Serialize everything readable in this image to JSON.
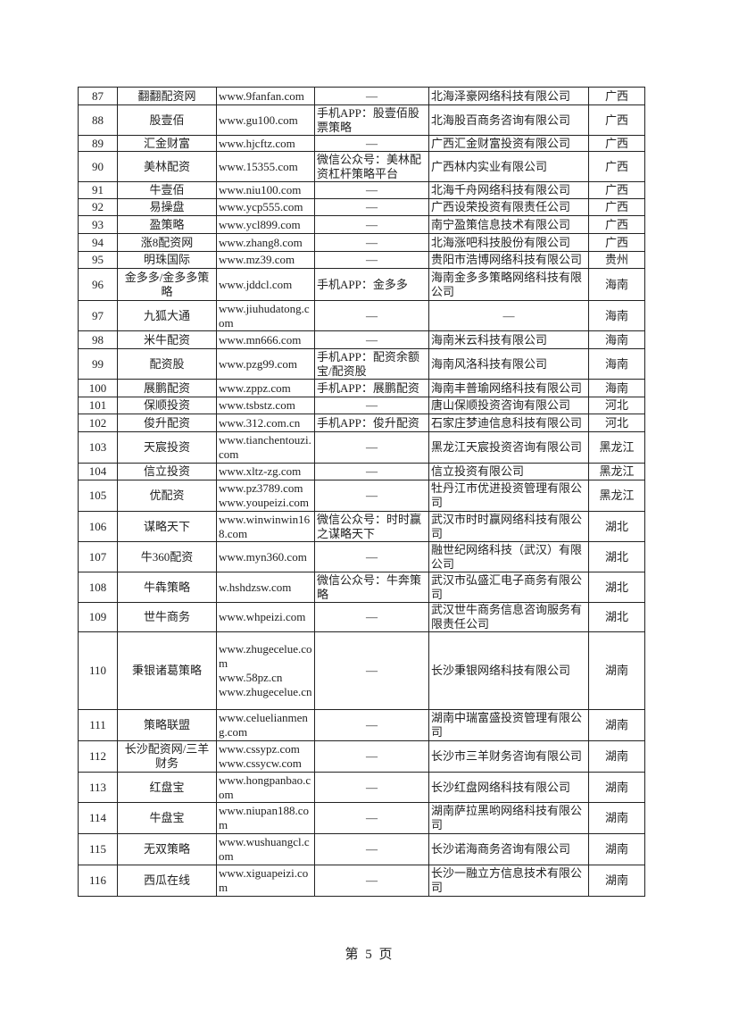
{
  "table": {
    "rows": [
      [
        "87",
        "翻翻配资网",
        "www.9fanfan.com",
        "—",
        "北海泽豪网络科技有限公司",
        "广西"
      ],
      [
        "88",
        "股壹佰",
        "www.gu100.com",
        "手机APP：股壹佰股票策略",
        "北海股百商务咨询有限公司",
        "广西"
      ],
      [
        "89",
        "汇金财富",
        "www.hjcftz.com",
        "—",
        "广西汇金财富投资有限公司",
        "广西"
      ],
      [
        "90",
        "美林配资",
        "www.15355.com",
        "微信公众号：美林配资杠杆策略平台",
        "广西林内实业有限公司",
        "广西"
      ],
      [
        "91",
        "牛壹佰",
        "www.niu100.com",
        "—",
        "北海千舟网络科技有限公司",
        "广西"
      ],
      [
        "92",
        "易操盘",
        "www.ycp555.com",
        "—",
        "广西设荣投资有限责任公司",
        "广西"
      ],
      [
        "93",
        "盈策略",
        "www.ycl899.com",
        "—",
        "南宁盈策信息技术有限公司",
        "广西"
      ],
      [
        "94",
        "涨8配资网",
        "www.zhang8.com",
        "—",
        "北海涨吧科技股份有限公司",
        "广西"
      ],
      [
        "95",
        "明珠国际",
        "www.mz39.com",
        "—",
        "贵阳市浩博网络科技有限公司",
        "贵州"
      ],
      [
        "96",
        "金多多/金多多策略",
        "www.jddcl.com",
        "手机APP：金多多",
        "海南金多多策略网络科技有限公司",
        "海南"
      ],
      [
        "97",
        "九狐大通",
        "www.jiuhudatong.com",
        "—",
        "—",
        "海南"
      ],
      [
        "98",
        "米牛配资",
        "www.mn666.com",
        "—",
        "海南米云科技有限公司",
        "海南"
      ],
      [
        "99",
        "配资股",
        "www.pzg99.com",
        "手机APP：配资余额宝/配资股",
        "海南风洛科技有限公司",
        "海南"
      ],
      [
        "100",
        "展鹏配资",
        "www.zppz.com",
        "手机APP：展鹏配资",
        "海南丰普瑜网络科技有限公司",
        "海南"
      ],
      [
        "101",
        "保顺投资",
        "www.tsbstz.com",
        "—",
        "唐山保顺投资咨询有限公司",
        "河北"
      ],
      [
        "102",
        "俊升配资",
        "www.312.com.cn",
        "手机APP：俊升配资",
        "石家庄梦迪信息科技有限公司",
        "河北"
      ],
      [
        "103",
        "天宸投资",
        "www.tianchentouzi.com",
        "—",
        "黑龙江天宸投资咨询有限公司",
        "黑龙江"
      ],
      [
        "104",
        "信立投资",
        "www.xltz-zg.com",
        "—",
        "信立投资有限公司",
        "黑龙江"
      ],
      [
        "105",
        "优配资",
        "www.pz3789.com www.youpeizi.com",
        "—",
        "牡丹江市优进投资管理有限公司",
        "黑龙江"
      ],
      [
        "106",
        "谋略天下",
        "www.winwinwin168.com",
        "微信公众号：时时赢之谋略天下",
        "武汉市时时赢网络科技有限公司",
        "湖北"
      ],
      [
        "107",
        "牛360配资",
        "www.myn360.com",
        "—",
        "融世纪网络科技（武汉）有限公司",
        "湖北"
      ],
      [
        "108",
        "牛犇策略",
        "w.hshdzsw.com",
        "微信公众号：牛奔策略",
        "武汉市弘盛汇电子商务有限公司",
        "湖北"
      ],
      [
        "109",
        "世牛商务",
        "www.whpeizi.com",
        "—",
        "武汉世牛商务信息咨询服务有限责任公司",
        "湖北"
      ],
      [
        "110",
        "秉银诸葛策略",
        "www.zhugecelue.com www.58pz.cn www.zhugecelue.cn",
        "—",
        "长沙秉银网络科技有限公司",
        "湖南"
      ],
      [
        "111",
        "策略联盟",
        "www.celuelianmeng.com",
        "—",
        "湖南中瑞富盛投资管理有限公司",
        "湖南"
      ],
      [
        "112",
        "长沙配资网/三羊财务",
        "www.cssypz.com www.cssycw.com",
        "—",
        "长沙市三羊财务咨询有限公司",
        "湖南"
      ],
      [
        "113",
        "红盘宝",
        "www.hongpanbao.com",
        "—",
        "长沙红盘网络科技有限公司",
        "湖南"
      ],
      [
        "114",
        "牛盘宝",
        "www.niupan188.com",
        "—",
        "湖南萨拉黑哟网络科技有限公司",
        "湖南"
      ],
      [
        "115",
        "无双策略",
        "www.wushuangcl.com",
        "—",
        "长沙诺海商务咨询有限公司",
        "湖南"
      ],
      [
        "116",
        "西瓜在线",
        "www.xiguapeizi.com",
        "—",
        "长沙一融立方信息技术有限公司",
        "湖南"
      ]
    ]
  },
  "footer": {
    "page_label": "第 5 页"
  }
}
